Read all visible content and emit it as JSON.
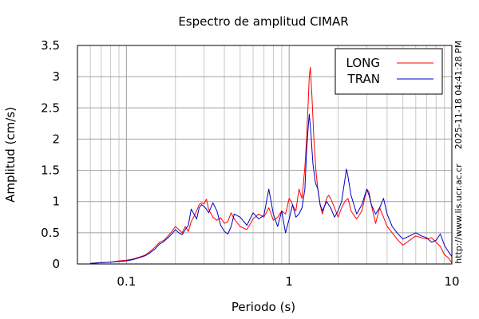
{
  "chart_data": {
    "type": "line",
    "title": "Espectro de amplitud CIMAR",
    "xlabel": "Periodo (s)",
    "ylabel": "Amplitud (cm/s)",
    "xscale": "log",
    "xlim": [
      0.05,
      10
    ],
    "ylim": [
      0,
      3.5
    ],
    "x_ticks": [
      {
        "value": 0.1,
        "label": "0.1"
      },
      {
        "value": 1,
        "label": "1"
      },
      {
        "value": 10,
        "label": "10"
      }
    ],
    "y_ticks": [
      {
        "value": 0,
        "label": "0"
      },
      {
        "value": 0.5,
        "label": "0.5"
      },
      {
        "value": 1,
        "label": "1"
      },
      {
        "value": 1.5,
        "label": "1.5"
      },
      {
        "value": 2,
        "label": "2"
      },
      {
        "value": 2.5,
        "label": "2.5"
      },
      {
        "value": 3,
        "label": "3"
      },
      {
        "value": 3.5,
        "label": "3.5"
      }
    ],
    "grid": true,
    "legend_position": "top-right",
    "series": [
      {
        "name": "LONG",
        "color": "#ff0000",
        "points": [
          [
            0.06,
            0.01
          ],
          [
            0.07,
            0.02
          ],
          [
            0.08,
            0.03
          ],
          [
            0.09,
            0.05
          ],
          [
            0.1,
            0.06
          ],
          [
            0.11,
            0.08
          ],
          [
            0.12,
            0.11
          ],
          [
            0.13,
            0.14
          ],
          [
            0.14,
            0.2
          ],
          [
            0.15,
            0.27
          ],
          [
            0.16,
            0.35
          ],
          [
            0.17,
            0.38
          ],
          [
            0.18,
            0.45
          ],
          [
            0.19,
            0.52
          ],
          [
            0.2,
            0.6
          ],
          [
            0.21,
            0.55
          ],
          [
            0.22,
            0.5
          ],
          [
            0.23,
            0.6
          ],
          [
            0.24,
            0.52
          ],
          [
            0.25,
            0.68
          ],
          [
            0.26,
            0.76
          ],
          [
            0.27,
            0.85
          ],
          [
            0.28,
            0.95
          ],
          [
            0.29,
            0.98
          ],
          [
            0.3,
            0.96
          ],
          [
            0.31,
            1.04
          ],
          [
            0.32,
            0.88
          ],
          [
            0.34,
            0.75
          ],
          [
            0.36,
            0.7
          ],
          [
            0.38,
            0.74
          ],
          [
            0.4,
            0.65
          ],
          [
            0.42,
            0.68
          ],
          [
            0.44,
            0.82
          ],
          [
            0.46,
            0.72
          ],
          [
            0.5,
            0.6
          ],
          [
            0.55,
            0.55
          ],
          [
            0.6,
            0.72
          ],
          [
            0.65,
            0.8
          ],
          [
            0.7,
            0.75
          ],
          [
            0.75,
            0.9
          ],
          [
            0.8,
            0.7
          ],
          [
            0.85,
            0.75
          ],
          [
            0.9,
            0.85
          ],
          [
            0.95,
            0.8
          ],
          [
            1.0,
            1.05
          ],
          [
            1.03,
            1.0
          ],
          [
            1.06,
            0.92
          ],
          [
            1.1,
            0.85
          ],
          [
            1.15,
            1.2
          ],
          [
            1.2,
            1.05
          ],
          [
            1.25,
            1.55
          ],
          [
            1.28,
            2.0
          ],
          [
            1.31,
            2.6
          ],
          [
            1.33,
            3.0
          ],
          [
            1.35,
            3.15
          ],
          [
            1.38,
            2.7
          ],
          [
            1.42,
            2.0
          ],
          [
            1.46,
            1.5
          ],
          [
            1.5,
            1.2
          ],
          [
            1.55,
            0.95
          ],
          [
            1.6,
            0.8
          ],
          [
            1.7,
            1.05
          ],
          [
            1.75,
            1.1
          ],
          [
            1.8,
            1.05
          ],
          [
            1.9,
            0.9
          ],
          [
            2.0,
            0.75
          ],
          [
            2.1,
            0.9
          ],
          [
            2.2,
            1.0
          ],
          [
            2.3,
            1.05
          ],
          [
            2.4,
            0.85
          ],
          [
            2.5,
            0.78
          ],
          [
            2.6,
            0.72
          ],
          [
            2.8,
            0.85
          ],
          [
            3.0,
            1.2
          ],
          [
            3.1,
            1.15
          ],
          [
            3.2,
            0.95
          ],
          [
            3.4,
            0.65
          ],
          [
            3.6,
            0.9
          ],
          [
            3.8,
            0.75
          ],
          [
            4.0,
            0.6
          ],
          [
            4.3,
            0.5
          ],
          [
            4.6,
            0.4
          ],
          [
            5.0,
            0.3
          ],
          [
            5.5,
            0.38
          ],
          [
            6.0,
            0.45
          ],
          [
            6.5,
            0.42
          ],
          [
            7.0,
            0.4
          ],
          [
            7.5,
            0.42
          ],
          [
            8.0,
            0.35
          ],
          [
            8.5,
            0.28
          ],
          [
            9.0,
            0.15
          ],
          [
            9.5,
            0.1
          ],
          [
            10.0,
            0.02
          ]
        ]
      },
      {
        "name": "TRAN",
        "color": "#0000c0",
        "points": [
          [
            0.06,
            0.01
          ],
          [
            0.07,
            0.02
          ],
          [
            0.08,
            0.03
          ],
          [
            0.09,
            0.04
          ],
          [
            0.1,
            0.05
          ],
          [
            0.11,
            0.07
          ],
          [
            0.12,
            0.1
          ],
          [
            0.13,
            0.13
          ],
          [
            0.14,
            0.18
          ],
          [
            0.15,
            0.24
          ],
          [
            0.16,
            0.32
          ],
          [
            0.17,
            0.36
          ],
          [
            0.18,
            0.42
          ],
          [
            0.19,
            0.48
          ],
          [
            0.2,
            0.55
          ],
          [
            0.21,
            0.5
          ],
          [
            0.22,
            0.47
          ],
          [
            0.23,
            0.55
          ],
          [
            0.24,
            0.62
          ],
          [
            0.25,
            0.88
          ],
          [
            0.26,
            0.8
          ],
          [
            0.27,
            0.72
          ],
          [
            0.28,
            0.9
          ],
          [
            0.29,
            0.95
          ],
          [
            0.3,
            0.92
          ],
          [
            0.31,
            0.88
          ],
          [
            0.32,
            0.82
          ],
          [
            0.34,
            0.98
          ],
          [
            0.36,
            0.85
          ],
          [
            0.38,
            0.62
          ],
          [
            0.4,
            0.52
          ],
          [
            0.42,
            0.48
          ],
          [
            0.44,
            0.6
          ],
          [
            0.46,
            0.8
          ],
          [
            0.5,
            0.75
          ],
          [
            0.55,
            0.62
          ],
          [
            0.6,
            0.82
          ],
          [
            0.65,
            0.72
          ],
          [
            0.7,
            0.78
          ],
          [
            0.75,
            1.2
          ],
          [
            0.8,
            0.8
          ],
          [
            0.85,
            0.6
          ],
          [
            0.9,
            0.85
          ],
          [
            0.95,
            0.5
          ],
          [
            1.0,
            0.72
          ],
          [
            1.05,
            0.95
          ],
          [
            1.1,
            0.75
          ],
          [
            1.15,
            0.8
          ],
          [
            1.2,
            0.9
          ],
          [
            1.25,
            1.2
          ],
          [
            1.28,
            1.8
          ],
          [
            1.31,
            2.2
          ],
          [
            1.33,
            2.4
          ],
          [
            1.36,
            2.1
          ],
          [
            1.4,
            1.6
          ],
          [
            1.45,
            1.3
          ],
          [
            1.5,
            1.2
          ],
          [
            1.55,
            0.95
          ],
          [
            1.6,
            0.85
          ],
          [
            1.7,
            1.0
          ],
          [
            1.8,
            0.9
          ],
          [
            1.9,
            0.75
          ],
          [
            2.0,
            0.85
          ],
          [
            2.1,
            1.0
          ],
          [
            2.2,
            1.35
          ],
          [
            2.25,
            1.52
          ],
          [
            2.3,
            1.4
          ],
          [
            2.4,
            1.1
          ],
          [
            2.5,
            0.95
          ],
          [
            2.6,
            0.8
          ],
          [
            2.8,
            0.95
          ],
          [
            3.0,
            1.2
          ],
          [
            3.1,
            1.1
          ],
          [
            3.2,
            0.95
          ],
          [
            3.4,
            0.8
          ],
          [
            3.6,
            0.9
          ],
          [
            3.8,
            1.05
          ],
          [
            4.0,
            0.8
          ],
          [
            4.3,
            0.6
          ],
          [
            4.6,
            0.5
          ],
          [
            5.0,
            0.4
          ],
          [
            5.5,
            0.45
          ],
          [
            6.0,
            0.5
          ],
          [
            6.5,
            0.45
          ],
          [
            7.0,
            0.42
          ],
          [
            7.5,
            0.35
          ],
          [
            8.0,
            0.38
          ],
          [
            8.5,
            0.48
          ],
          [
            9.0,
            0.3
          ],
          [
            9.5,
            0.2
          ],
          [
            10.0,
            0.12
          ]
        ]
      }
    ]
  },
  "side_texts": {
    "timestamp": "2025-11-18 04:41:28 PM",
    "url": "http://www.lis.ucr.ac.cr"
  }
}
